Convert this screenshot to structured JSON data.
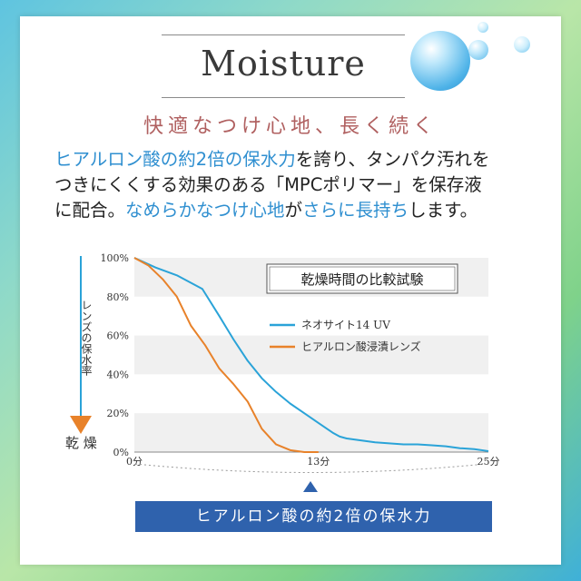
{
  "title": "Moisture",
  "subtitle": "快適なつけ心地、長く続く",
  "description": {
    "line1": [
      {
        "text": "ヒアルロン酸の約2倍の保水力",
        "highlight": true
      },
      {
        "text": "を誇り、タンパク汚れを",
        "highlight": false
      }
    ],
    "line2": [
      {
        "text": "つきにくくする効果のある「MPCポリマー」を保存液",
        "highlight": false
      }
    ],
    "line3": [
      {
        "text": "に配合。",
        "highlight": false
      },
      {
        "text": "なめらかなつけ心地",
        "highlight": true
      },
      {
        "text": "が",
        "highlight": false
      },
      {
        "text": "さらに長持ち",
        "highlight": true
      },
      {
        "text": "します。",
        "highlight": false
      }
    ]
  },
  "caption": "ヒアルロン酸の約2倍の保水力",
  "colors": {
    "accent_blue": "#2f8fd0",
    "series1": "#2aa3d8",
    "series2": "#e8822a",
    "caption_bg": "#2f62ad",
    "subtitle": "#b06060"
  },
  "chart_data": {
    "type": "line",
    "title": "乾燥時間の比較試験",
    "ylabel": "レンズの保水率",
    "ylabel_bottom": "乾 燥",
    "y_ticks": [
      "100%",
      "80%",
      "60%",
      "40%",
      "20%",
      "0%"
    ],
    "ylim": [
      0,
      100
    ],
    "x_ticks": [
      "0分",
      "13分",
      "25分"
    ],
    "xlim": [
      0,
      25
    ],
    "grid": "horizontal bands",
    "legend_position": "middle-right",
    "series": [
      {
        "name": "ネオサイト14 UV",
        "color": "#2aa3d8",
        "x": [
          0,
          1.5,
          3,
          4.8,
          6,
          7,
          8,
          9,
          10,
          11,
          12,
          13,
          14,
          14.5,
          15,
          16,
          17,
          18,
          19,
          20,
          21,
          22,
          23,
          24,
          25
        ],
        "y": [
          100,
          95,
          91,
          84,
          70,
          58,
          47,
          38,
          31,
          25,
          20,
          15,
          10,
          8,
          7,
          6,
          5,
          4.5,
          4,
          4,
          3.5,
          3,
          2,
          1.5,
          0.5
        ]
      },
      {
        "name": "ヒアルロン酸浸漬レンズ",
        "color": "#e8822a",
        "x": [
          0,
          1,
          2,
          3,
          4,
          5,
          6,
          7,
          8,
          9,
          10,
          11,
          12,
          13
        ],
        "y": [
          100,
          96,
          89,
          80,
          65,
          55,
          43,
          35,
          26,
          12,
          4,
          1,
          0,
          0
        ]
      }
    ]
  }
}
